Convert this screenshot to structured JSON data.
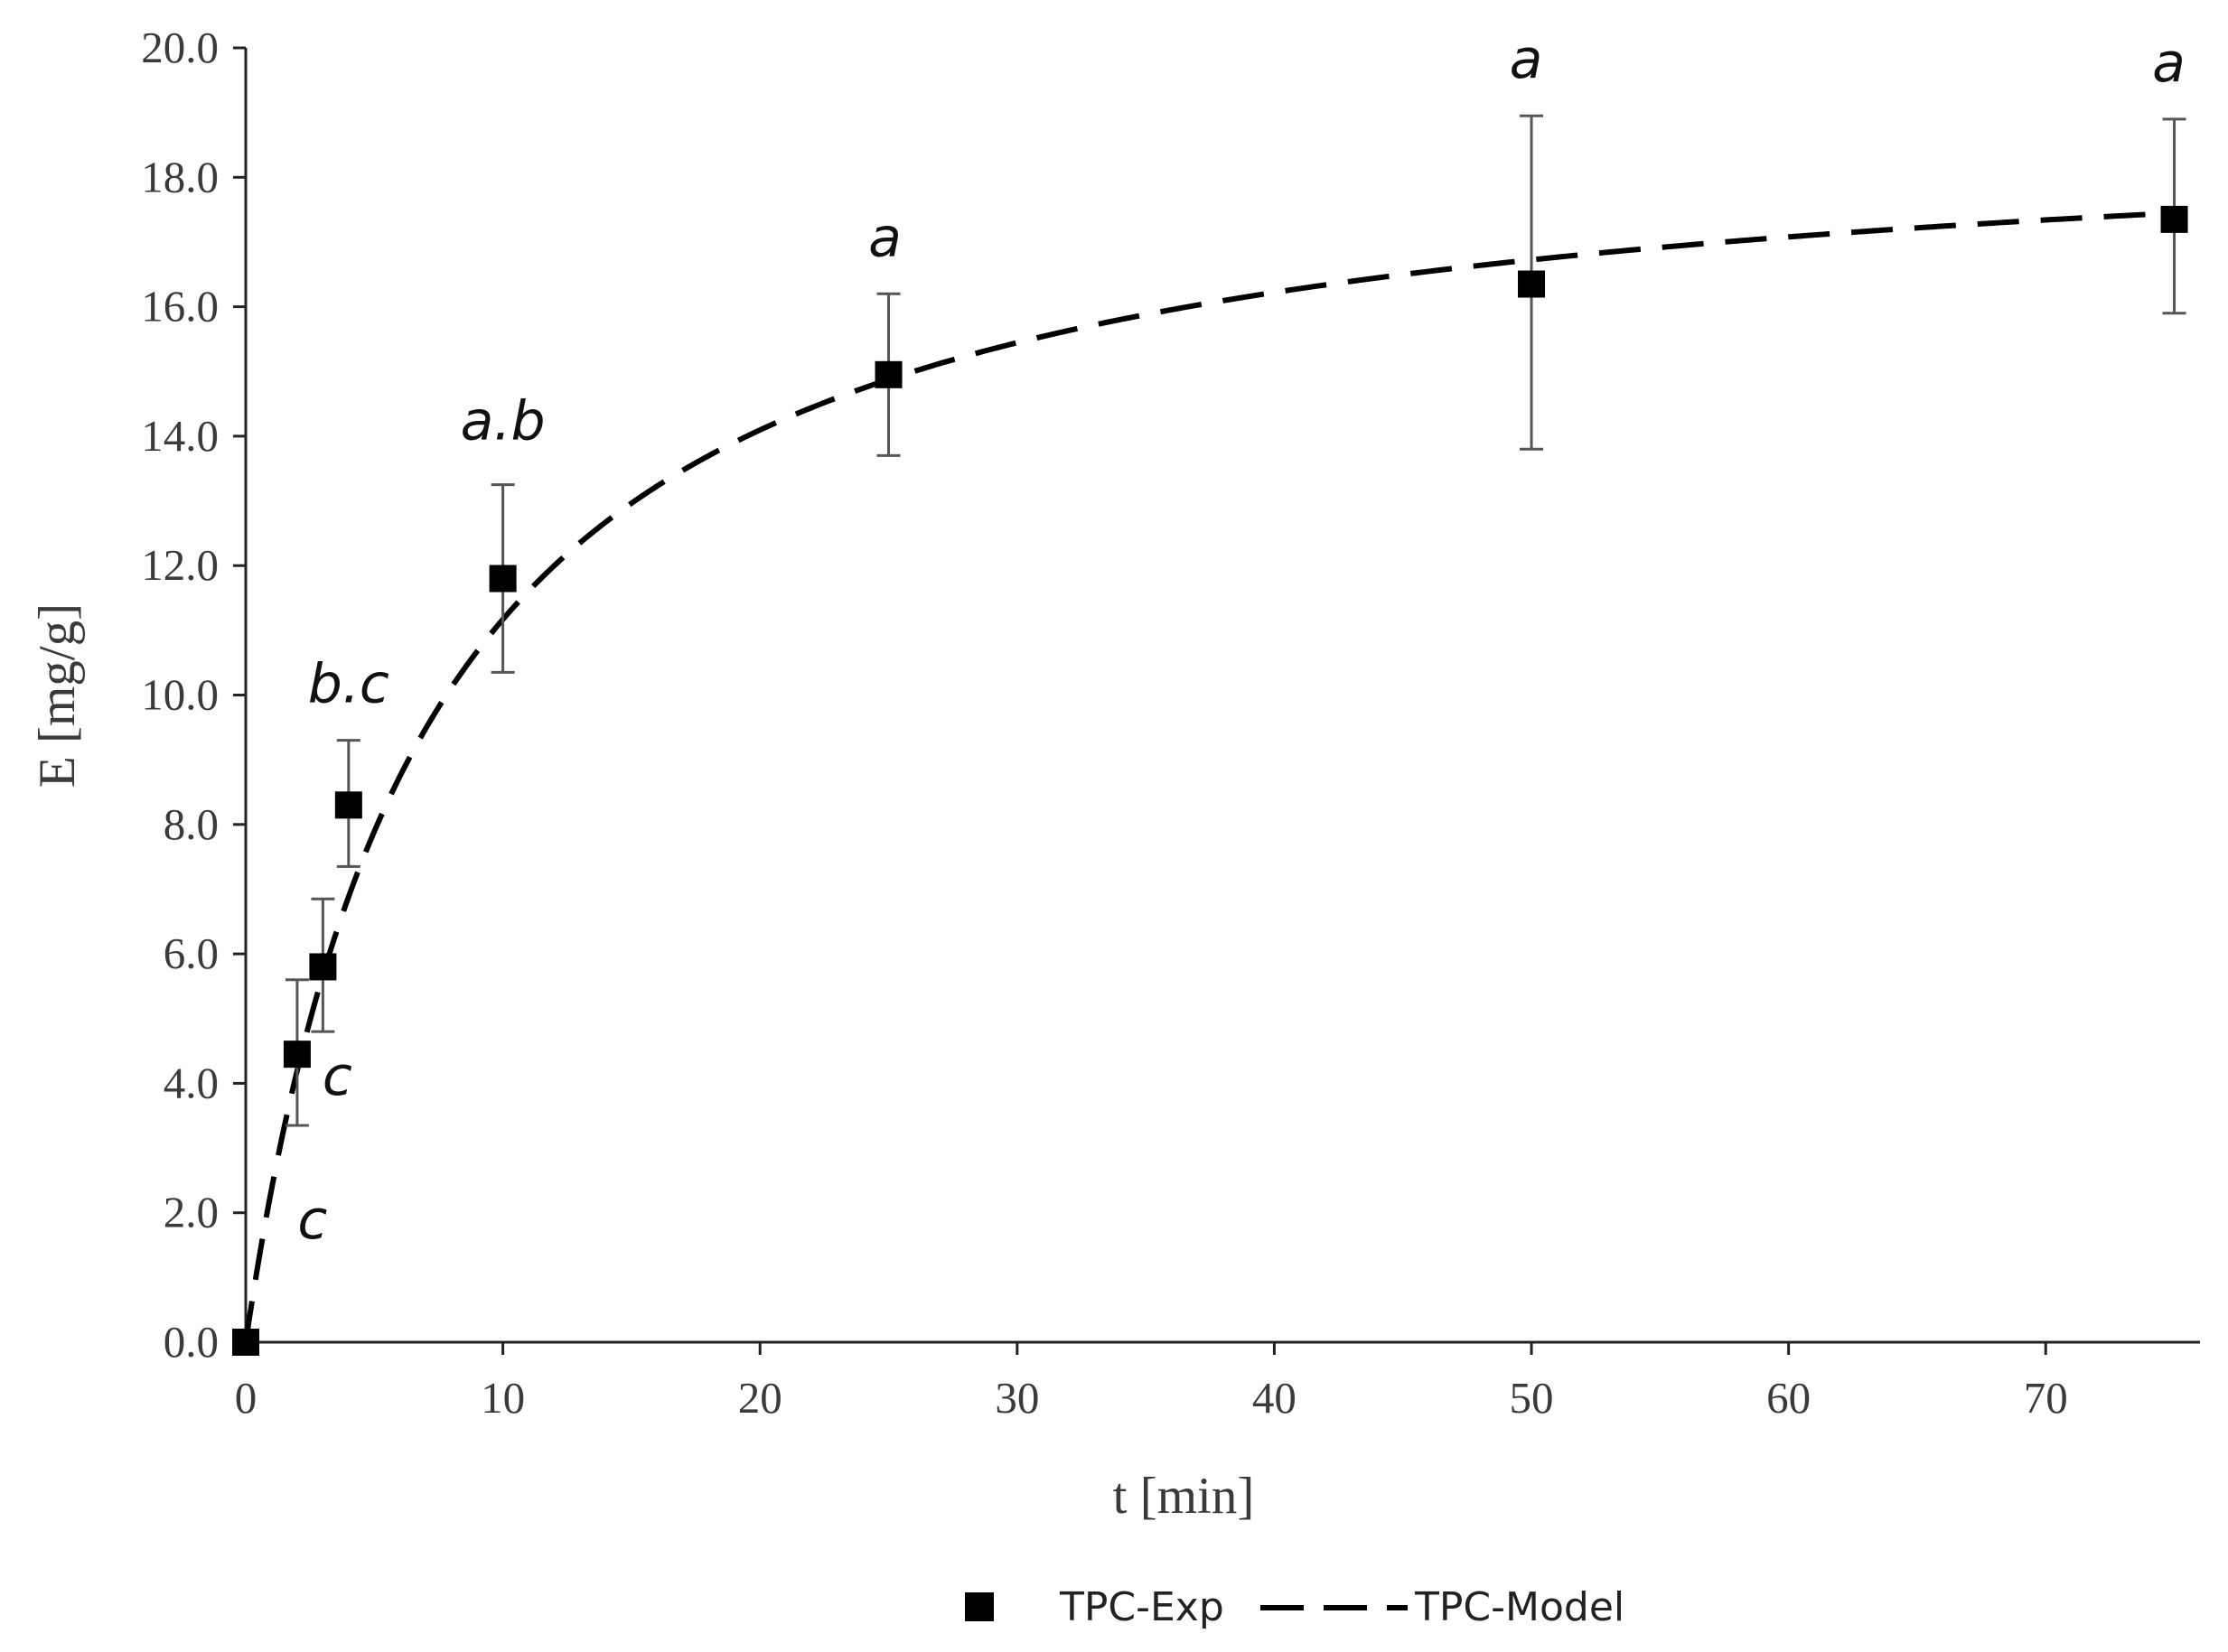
{
  "chart_data": {
    "type": "scatter",
    "title": "",
    "xlabel": "t [min]",
    "ylabel": "E [mg/g]",
    "xlim": [
      0,
      76
    ],
    "ylim": [
      0,
      20
    ],
    "xticks": [
      0,
      10,
      20,
      30,
      40,
      50,
      60,
      70
    ],
    "xtick_labels": [
      "0",
      "10",
      "20",
      "30",
      "40",
      "50",
      "60",
      "70"
    ],
    "yticks": [
      0,
      2,
      4,
      6,
      8,
      10,
      12,
      14,
      16,
      18,
      20
    ],
    "ytick_labels": [
      "0.0",
      "2.0",
      "4.0",
      "6.0",
      "8.0",
      "10.0",
      "12.0",
      "14.0",
      "16.0",
      "18.0",
      "20.0"
    ],
    "grid": false,
    "legend_position": "bottom",
    "series": [
      {
        "name": "TPC-Exp",
        "kind": "points-with-error-bars",
        "marker": "square",
        "x": [
          0,
          2,
          3,
          4,
          10,
          25,
          50,
          75
        ],
        "y": [
          0.0,
          4.45,
          5.8,
          8.3,
          11.8,
          14.95,
          16.35,
          17.35
        ],
        "error_low": [
          0.0,
          3.35,
          4.8,
          7.35,
          10.35,
          13.7,
          13.8,
          15.9
        ],
        "error_high": [
          0.0,
          5.6,
          6.85,
          9.3,
          13.25,
          16.2,
          18.95,
          18.9
        ],
        "labels": [
          "",
          "c",
          "c",
          "b.c",
          "a.b",
          "a",
          "a",
          "a"
        ]
      },
      {
        "name": "TPC-Model",
        "kind": "dashed-line",
        "equation": "E = Emax * t / (K + t)",
        "Emax": 19.1,
        "K": 7.1,
        "x_range": [
          0,
          75
        ]
      }
    ],
    "color": "#000000",
    "axis_text_color": "#3a3a3a",
    "error_bar_color": "#555555"
  }
}
